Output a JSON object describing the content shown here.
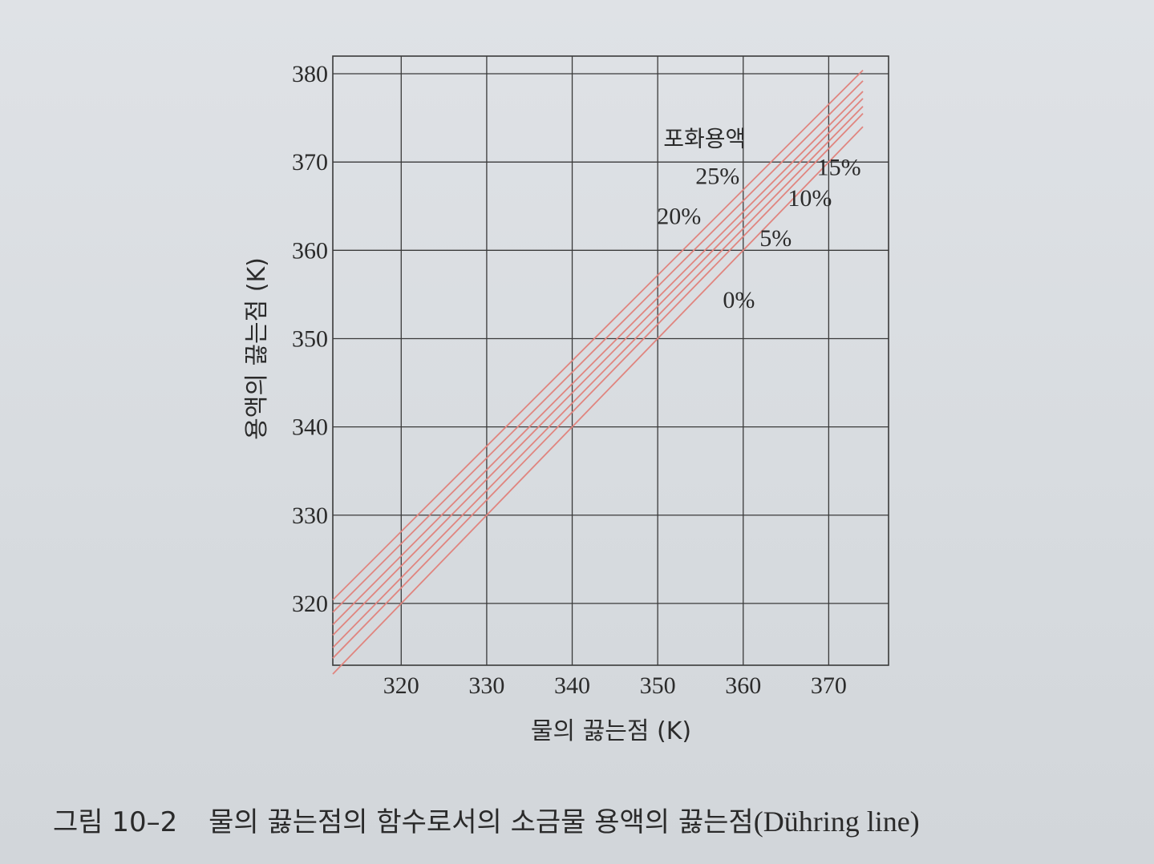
{
  "chart_data": {
    "type": "line",
    "title": "",
    "xlabel": "물의 끓는점 (K)",
    "ylabel": "용액의 끓는점 (K)",
    "xlim": [
      312,
      377
    ],
    "ylim": [
      313,
      382
    ],
    "xticks": [
      320,
      330,
      340,
      350,
      360,
      370
    ],
    "yticks": [
      320,
      330,
      340,
      350,
      360,
      370,
      380
    ],
    "grid": true,
    "series": [
      {
        "name": "0%",
        "x": [
          312,
          374
        ],
        "y": [
          312.0,
          374.0
        ]
      },
      {
        "name": "5%",
        "x": [
          312,
          374
        ],
        "y": [
          313.8,
          375.5
        ]
      },
      {
        "name": "10%",
        "x": [
          312,
          374
        ],
        "y": [
          315.0,
          376.3
        ]
      },
      {
        "name": "15%",
        "x": [
          312,
          374
        ],
        "y": [
          316.4,
          377.2
        ]
      },
      {
        "name": "20%",
        "x": [
          312,
          374
        ],
        "y": [
          317.6,
          378.0
        ]
      },
      {
        "name": "25%",
        "x": [
          312,
          374
        ],
        "y": [
          319.0,
          379.2
        ]
      },
      {
        "name": "포화용액",
        "x": [
          312,
          374
        ],
        "y": [
          320.4,
          380.4
        ]
      }
    ],
    "annotations": [
      {
        "text": "포화용액",
        "x": 355.5,
        "y": 371.8
      },
      {
        "text": "25%",
        "x": 357.0,
        "y": 367.5
      },
      {
        "text": "20%",
        "x": 352.5,
        "y": 363.0
      },
      {
        "text": "15%",
        "x": 371.2,
        "y": 368.5
      },
      {
        "text": "10%",
        "x": 367.8,
        "y": 365.0
      },
      {
        "text": "5%",
        "x": 363.8,
        "y": 360.5
      },
      {
        "text": "0%",
        "x": 359.5,
        "y": 353.5
      }
    ]
  },
  "colors": {
    "series_line": "#e0857f",
    "grid": "#3a3a3a"
  },
  "caption": {
    "number": "그림 10–2",
    "text": "물의 끓는점의 함수로서의 소금물 용액의 끓는점",
    "latin": "(Dühring line)"
  }
}
